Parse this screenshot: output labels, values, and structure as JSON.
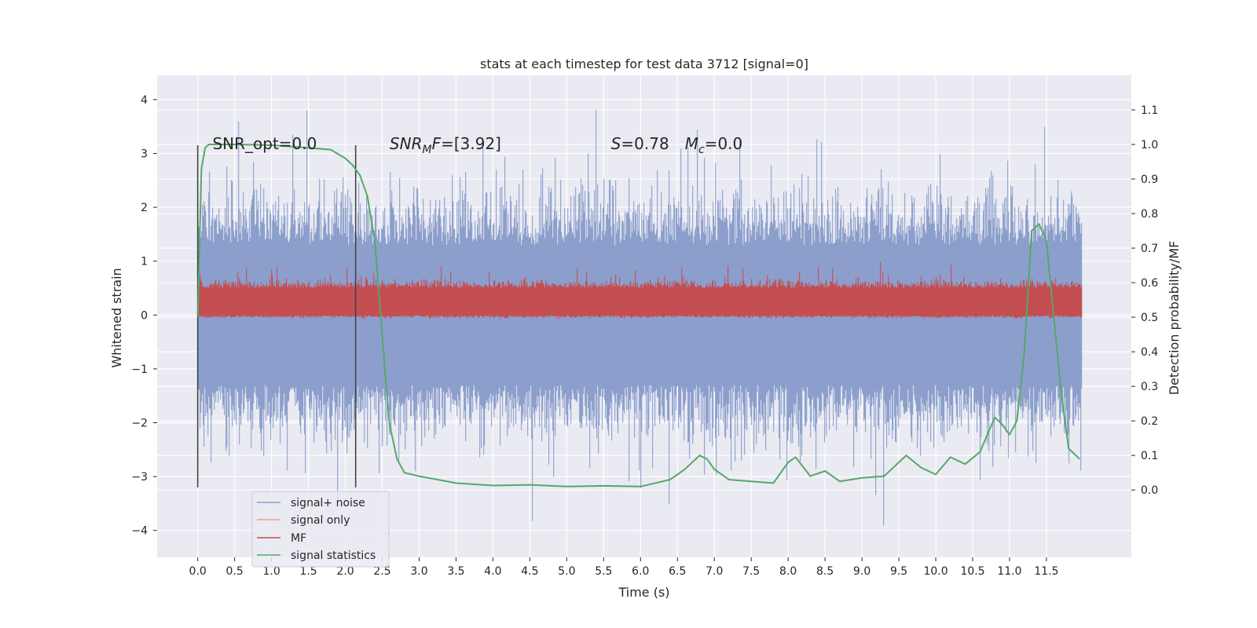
{
  "chart_data": {
    "type": "line",
    "title": "stats at each timestep for test data 3712 [signal=0]",
    "xlabel": "Time (s)",
    "ylabel_left": "Whitened strain",
    "ylabel_right": "Detection probability/MF",
    "xlim": [
      -0.55,
      12.65
    ],
    "ylim_left": [
      -4.5,
      4.45
    ],
    "ylim_right": [
      -0.195,
      1.2
    ],
    "grid": true,
    "x_ticks": [
      0.0,
      0.5,
      1.0,
      1.5,
      2.0,
      2.5,
      3.0,
      3.5,
      4.0,
      4.5,
      5.0,
      5.5,
      6.0,
      6.5,
      7.0,
      7.5,
      8.0,
      8.5,
      9.0,
      9.5,
      10.0,
      10.5,
      11.0,
      11.5
    ],
    "x_tick_labels": [
      "0.0",
      "0.5",
      "1.0",
      "1.5",
      "2.0",
      "2.5",
      "3.0",
      "3.5",
      "4.0",
      "4.5",
      "5.0",
      "5.5",
      "6.0",
      "6.5",
      "7.0",
      "7.5",
      "8.0",
      "8.5",
      "9.0",
      "9.5",
      "10.0",
      "10.5",
      "11.0",
      "11.5"
    ],
    "y_left_ticks": [
      -4,
      -3,
      -2,
      -1,
      0,
      1,
      2,
      3,
      4
    ],
    "y_left_tick_labels": [
      "−4",
      "−3",
      "−2",
      "−1",
      "0",
      "1",
      "2",
      "3",
      "4"
    ],
    "y_right_ticks": [
      0.0,
      0.1,
      0.2,
      0.3,
      0.4,
      0.5,
      0.6,
      0.7,
      0.8,
      0.9,
      1.0,
      1.1
    ],
    "y_right_tick_labels": [
      "0.0",
      "0.1",
      "0.2",
      "0.3",
      "0.4",
      "0.5",
      "0.6",
      "0.7",
      "0.8",
      "0.9",
      "1.0",
      "1.1"
    ],
    "noise_band": {
      "x_range": [
        0.0,
        11.98
      ],
      "typical_range": [
        -2.0,
        2.0
      ],
      "extreme_range": [
        -4.1,
        4.05
      ]
    },
    "mf_band": {
      "x_range": [
        0.0,
        11.98
      ],
      "typical_range": [
        0.52,
        0.62
      ],
      "peak_max": 0.66
    },
    "signal_statistics": {
      "x": [
        0.0,
        0.05,
        0.1,
        0.15,
        0.2,
        0.3,
        0.5,
        1.0,
        1.5,
        1.8,
        2.0,
        2.1,
        2.2,
        2.3,
        2.4,
        2.5,
        2.55,
        2.6,
        2.7,
        2.8,
        3.0,
        3.5,
        4.0,
        4.5,
        5.0,
        5.5,
        6.0,
        6.4,
        6.6,
        6.8,
        6.9,
        7.0,
        7.2,
        7.5,
        7.8,
        8.0,
        8.1,
        8.3,
        8.5,
        8.7,
        9.0,
        9.3,
        9.6,
        9.8,
        10.0,
        10.2,
        10.4,
        10.6,
        10.8,
        10.9,
        11.0,
        11.1,
        11.2,
        11.3,
        11.4,
        11.5,
        11.6,
        11.7,
        11.8,
        11.95
      ],
      "y": [
        0.5,
        0.93,
        0.99,
        1.0,
        1.0,
        1.0,
        1.0,
        0.998,
        0.99,
        0.985,
        0.96,
        0.94,
        0.91,
        0.85,
        0.72,
        0.45,
        0.31,
        0.19,
        0.09,
        0.05,
        0.04,
        0.02,
        0.013,
        0.015,
        0.01,
        0.012,
        0.01,
        0.03,
        0.06,
        0.1,
        0.09,
        0.06,
        0.03,
        0.025,
        0.02,
        0.08,
        0.095,
        0.04,
        0.055,
        0.025,
        0.035,
        0.04,
        0.1,
        0.065,
        0.045,
        0.095,
        0.075,
        0.11,
        0.21,
        0.19,
        0.16,
        0.2,
        0.4,
        0.75,
        0.77,
        0.72,
        0.5,
        0.28,
        0.12,
        0.09
      ]
    },
    "vertical_lines": [
      0.0,
      2.14
    ],
    "vertical_line_range": [
      -3.2,
      3.15
    ],
    "annotations": [
      {
        "x": 0.2,
        "y": 3.18,
        "text": "SNR_opt=0.0"
      },
      {
        "x": 2.6,
        "y": 3.18,
        "base": "SNR",
        "sub": "M",
        "tail": "F=[3.92]"
      },
      {
        "x": 5.6,
        "y": 3.18,
        "parts": [
          {
            "base": "S",
            "tail": "=0.78"
          },
          {
            "base": "M",
            "sub": "c",
            "tail": "=0.0"
          }
        ]
      }
    ],
    "series": [
      {
        "name": "signal+ noise",
        "color": "#8c9fcc"
      },
      {
        "name": "signal only",
        "color": "#e8a387"
      },
      {
        "name": "MF",
        "color": "#c44e52"
      },
      {
        "name": "signal statistics",
        "color": "#55a868"
      }
    ],
    "legend_position": "lower-left"
  }
}
